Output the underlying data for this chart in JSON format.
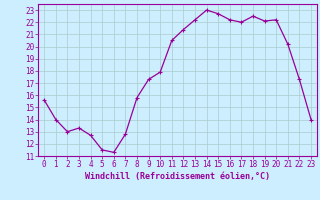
{
  "x": [
    0,
    1,
    2,
    3,
    4,
    5,
    6,
    7,
    8,
    9,
    10,
    11,
    12,
    13,
    14,
    15,
    16,
    17,
    18,
    19,
    20,
    21,
    22,
    23
  ],
  "y": [
    15.6,
    14.0,
    13.0,
    13.3,
    12.7,
    11.5,
    11.3,
    12.8,
    15.8,
    17.3,
    17.9,
    20.5,
    21.4,
    22.2,
    23.0,
    22.7,
    22.2,
    22.0,
    22.5,
    22.1,
    22.2,
    20.2,
    17.3,
    14.0
  ],
  "line_color": "#990099",
  "marker": "+",
  "marker_size": 3.5,
  "linewidth": 0.9,
  "bg_color": "#cceeff",
  "grid_color": "#aacccc",
  "xlabel": "Windchill (Refroidissement éolien,°C)",
  "xlabel_color": "#990099",
  "tick_color": "#990099",
  "spine_color": "#990099",
  "xlim": [
    -0.5,
    23.5
  ],
  "ylim": [
    11,
    23.5
  ],
  "yticks": [
    11,
    12,
    13,
    14,
    15,
    16,
    17,
    18,
    19,
    20,
    21,
    22,
    23
  ],
  "xticks": [
    0,
    1,
    2,
    3,
    4,
    5,
    6,
    7,
    8,
    9,
    10,
    11,
    12,
    13,
    14,
    15,
    16,
    17,
    18,
    19,
    20,
    21,
    22,
    23
  ],
  "font_size": 5.5,
  "xlabel_fontsize": 6.0
}
